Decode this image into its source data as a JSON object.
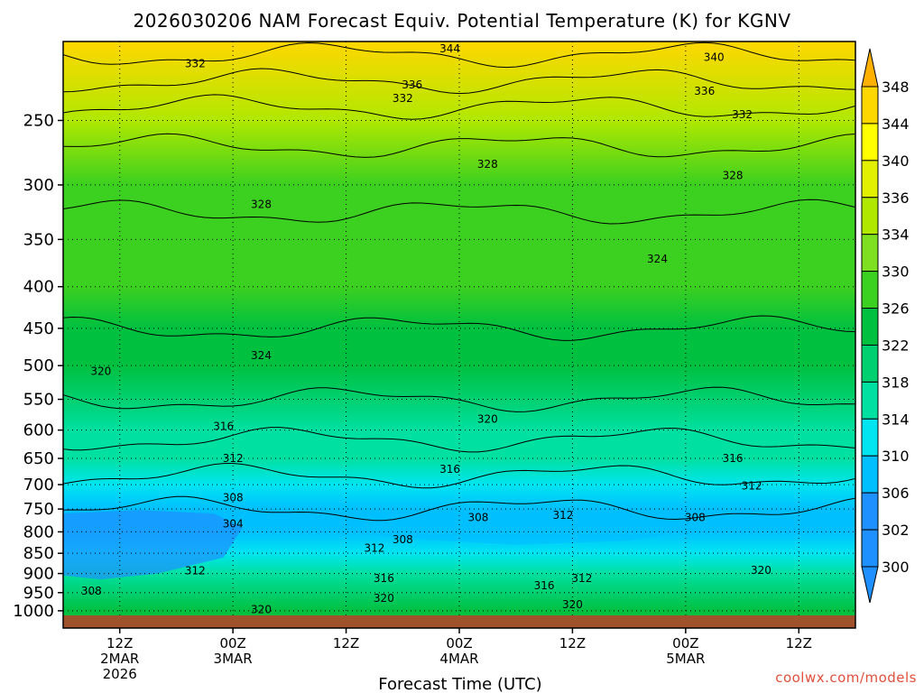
{
  "chart_data": {
    "type": "heatmap",
    "title": "2026030206 NAM Forecast Equiv. Potential Temperature (K) for KGNV",
    "xlabel": "Forecast Time (UTC)",
    "ylabel": "",
    "x_range": [
      "2026-03-02T06Z",
      "2026-03-05T18Z"
    ],
    "y_range_hPa": [
      200,
      1050
    ],
    "y_scale": "log-pressure",
    "y_ticks": [
      "250",
      "300",
      "350",
      "400",
      "450",
      "500",
      "550",
      "600",
      "650",
      "700",
      "750",
      "800",
      "850",
      "900",
      "950",
      "1000"
    ],
    "x_ticks": [
      {
        "hour": 6,
        "lines": [
          "12Z",
          "2MAR",
          "2026"
        ]
      },
      {
        "hour": 18,
        "lines": [
          "00Z",
          "3MAR"
        ]
      },
      {
        "hour": 30,
        "lines": [
          "12Z"
        ]
      },
      {
        "hour": 42,
        "lines": [
          "00Z",
          "4MAR"
        ]
      },
      {
        "hour": 54,
        "lines": [
          "12Z"
        ]
      },
      {
        "hour": 66,
        "lines": [
          "00Z",
          "5MAR"
        ]
      },
      {
        "hour": 78,
        "lines": [
          "12Z"
        ]
      }
    ],
    "x_hours_range": [
      0,
      84
    ],
    "grid": true,
    "colorbar": {
      "labels": [
        "300",
        "302",
        "306",
        "310",
        "314",
        "318",
        "322",
        "326",
        "330",
        "334",
        "336",
        "340",
        "344",
        "348"
      ],
      "colors": [
        "#1e90ff",
        "#1e90ff",
        "#00bfff",
        "#00e5f0",
        "#00e0a0",
        "#00d070",
        "#00c040",
        "#3cd020",
        "#7ee020",
        "#b0e800",
        "#e0f000",
        "#ffff00",
        "#ffd700",
        "#ffb000"
      ]
    },
    "theta_e_profile": [
      {
        "p": 200,
        "K": 346
      },
      {
        "p": 250,
        "K": 334
      },
      {
        "p": 300,
        "K": 329
      },
      {
        "p": 350,
        "K": 327
      },
      {
        "p": 400,
        "K": 326
      },
      {
        "p": 450,
        "K": 324
      },
      {
        "p": 500,
        "K": 322
      },
      {
        "p": 550,
        "K": 320
      },
      {
        "p": 600,
        "K": 317
      },
      {
        "p": 650,
        "K": 314
      },
      {
        "p": 700,
        "K": 311
      },
      {
        "p": 750,
        "K": 308
      },
      {
        "p": 800,
        "K": 306
      },
      {
        "p": 850,
        "K": 310
      },
      {
        "p": 900,
        "K": 316
      },
      {
        "p": 950,
        "K": 321
      },
      {
        "p": 1000,
        "K": 323
      }
    ],
    "contour_labels": [
      {
        "text": "344",
        "hour": 41,
        "p": 204
      },
      {
        "text": "340",
        "hour": 69,
        "p": 209
      },
      {
        "text": "336",
        "hour": 37,
        "p": 226
      },
      {
        "text": "336",
        "hour": 68,
        "p": 230
      },
      {
        "text": "332",
        "hour": 14,
        "p": 213
      },
      {
        "text": "332",
        "hour": 36,
        "p": 235
      },
      {
        "text": "332",
        "hour": 72,
        "p": 246
      },
      {
        "text": "328",
        "hour": 45,
        "p": 283
      },
      {
        "text": "328",
        "hour": 71,
        "p": 292
      },
      {
        "text": "328",
        "hour": 21,
        "p": 317
      },
      {
        "text": "324",
        "hour": 63,
        "p": 370
      },
      {
        "text": "324",
        "hour": 21,
        "p": 486
      },
      {
        "text": "320",
        "hour": 4,
        "p": 508
      },
      {
        "text": "320",
        "hour": 45,
        "p": 582
      },
      {
        "text": "316",
        "hour": 17,
        "p": 594
      },
      {
        "text": "316",
        "hour": 41,
        "p": 670
      },
      {
        "text": "316",
        "hour": 71,
        "p": 650
      },
      {
        "text": "312",
        "hour": 18,
        "p": 650
      },
      {
        "text": "312",
        "hour": 73,
        "p": 703
      },
      {
        "text": "312",
        "hour": 53,
        "p": 763
      },
      {
        "text": "312",
        "hour": 33,
        "p": 838
      },
      {
        "text": "312",
        "hour": 14,
        "p": 893
      },
      {
        "text": "312",
        "hour": 55,
        "p": 913
      },
      {
        "text": "308",
        "hour": 18,
        "p": 726
      },
      {
        "text": "308",
        "hour": 44,
        "p": 768
      },
      {
        "text": "308",
        "hour": 67,
        "p": 768
      },
      {
        "text": "308",
        "hour": 36,
        "p": 818
      },
      {
        "text": "308",
        "hour": 3,
        "p": 946
      },
      {
        "text": "304",
        "hour": 18,
        "p": 782
      },
      {
        "text": "316",
        "hour": 34,
        "p": 913
      },
      {
        "text": "316",
        "hour": 51,
        "p": 931
      },
      {
        "text": "320",
        "hour": 21,
        "p": 996
      },
      {
        "text": "320",
        "hour": 34,
        "p": 965
      },
      {
        "text": "320",
        "hour": 54,
        "p": 983
      },
      {
        "text": "320",
        "hour": 74,
        "p": 892
      }
    ]
  },
  "credit": "coolwx.com/models",
  "colors": {
    "ground": "#a0522d",
    "gridline": "#000000",
    "credit": "#e0503a"
  }
}
